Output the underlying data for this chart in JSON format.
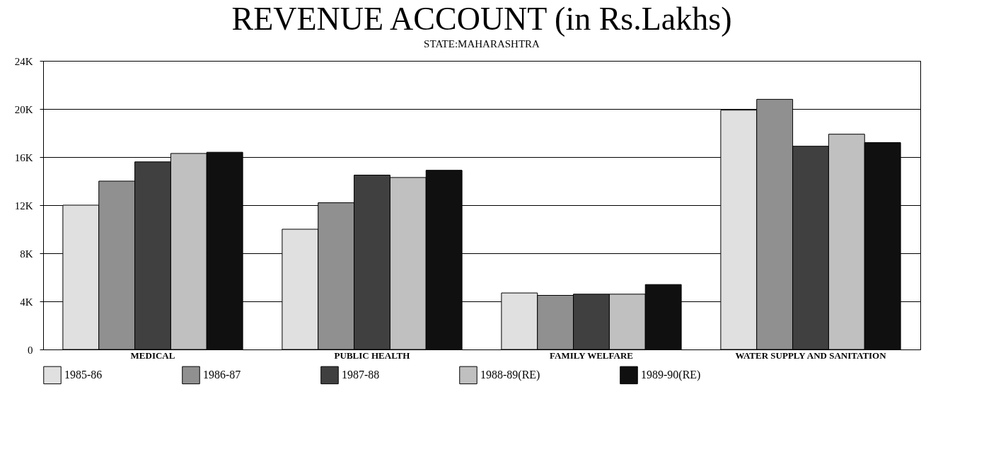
{
  "chart_data": {
    "type": "bar",
    "title": "REVENUE ACCOUNT (in Rs.Lakhs)",
    "subtitle": "STATE:MAHARASHTRA",
    "categories": [
      "MEDICAL",
      "PUBLIC HEALTH",
      "FAMILY WELFARE",
      "WATER SUPPLY AND SANITATION"
    ],
    "series": [
      {
        "name": "1985-86",
        "color": "#e0e0e0",
        "values": [
          12.0,
          10.0,
          4.7,
          19.9
        ]
      },
      {
        "name": "1986-87",
        "color": "#909090",
        "values": [
          14.0,
          12.2,
          4.5,
          20.8
        ]
      },
      {
        "name": "1987-88",
        "color": "#404040",
        "values": [
          15.6,
          14.5,
          4.6,
          16.9
        ]
      },
      {
        "name": "1988-89(RE)",
        "color": "#c0c0c0",
        "values": [
          16.3,
          14.3,
          4.6,
          17.9
        ]
      },
      {
        "name": "1989-90(RE)",
        "color": "#101010",
        "values": [
          16.4,
          14.9,
          5.4,
          17.2
        ]
      }
    ],
    "ylim": [
      0,
      24
    ],
    "yticks": [
      {
        "value": 0,
        "label": "0"
      },
      {
        "value": 4,
        "label": "4K"
      },
      {
        "value": 8,
        "label": "8K"
      },
      {
        "value": 12,
        "label": "12K"
      },
      {
        "value": 16,
        "label": "16K"
      },
      {
        "value": 20,
        "label": "20K"
      },
      {
        "value": 24,
        "label": "24K"
      }
    ],
    "grid": "y",
    "legend": "bottom"
  }
}
